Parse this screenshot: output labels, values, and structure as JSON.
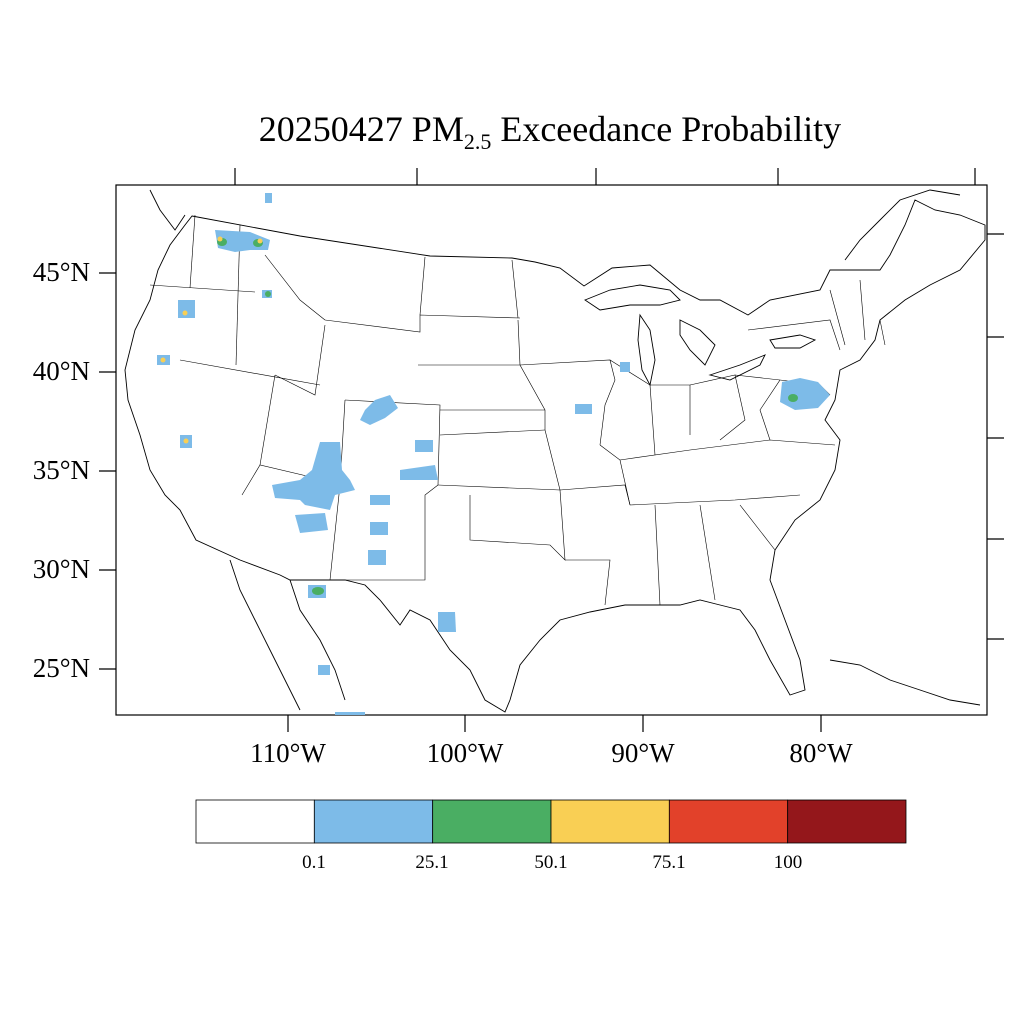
{
  "title": {
    "date": "20250427",
    "pollutant": "PM",
    "pollutant_subscript": "2.5",
    "suffix": "Exceedance Probability"
  },
  "axes": {
    "latitude_labels": [
      "45°N",
      "40°N",
      "35°N",
      "30°N",
      "25°N"
    ],
    "longitude_labels": [
      "110°W",
      "100°W",
      "90°W",
      "80°W"
    ]
  },
  "colorbar": {
    "bins": [
      {
        "color": "#ffffff"
      },
      {
        "color": "#7dbbe8"
      },
      {
        "color": "#4aae63"
      },
      {
        "color": "#f9cf54"
      },
      {
        "color": "#e2412a"
      },
      {
        "color": "#94171b"
      }
    ],
    "labels": [
      "0.1",
      "25.1",
      "50.1",
      "75.1",
      "100"
    ]
  },
  "map_colors": {
    "outline": "#000000",
    "low": "#7dbbe8",
    "mid": "#4aae63",
    "high": "#f9cf54"
  }
}
